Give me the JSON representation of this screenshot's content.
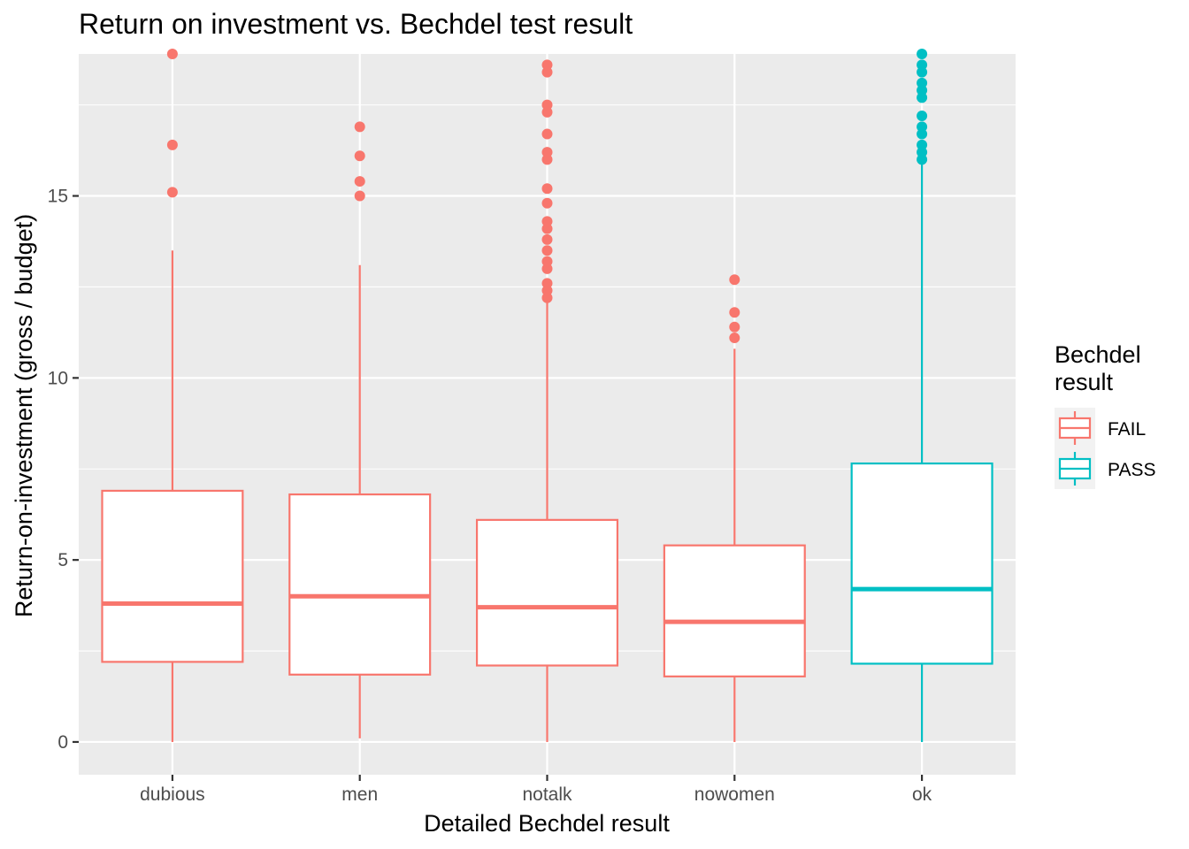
{
  "chart_data": {
    "type": "boxplot",
    "title": "Return on investment vs. Bechdel test result",
    "xlabel": "Detailed Bechdel result",
    "ylabel": "Return-on-investment (gross / budget)",
    "categories": [
      "dubious",
      "men",
      "notalk",
      "nowomen",
      "ok"
    ],
    "ylim": [
      -0.9,
      18.9
    ],
    "yticks": [
      0,
      5,
      10,
      15
    ],
    "grid": true,
    "legend": {
      "title": "Bechdel result",
      "title_lines": [
        "Bechdel",
        "result"
      ],
      "position": "right",
      "entries": [
        {
          "label": "FAIL",
          "color": "#F8766D"
        },
        {
          "label": "PASS",
          "color": "#00BFC4"
        }
      ]
    },
    "boxes": [
      {
        "category": "dubious",
        "group": "FAIL",
        "lower_whisker": 0.0,
        "q1": 2.2,
        "median": 3.8,
        "q3": 6.9,
        "upper_whisker": 13.5,
        "outliers": [
          15.1,
          16.4,
          18.9
        ]
      },
      {
        "category": "men",
        "group": "FAIL",
        "lower_whisker": 0.1,
        "q1": 1.85,
        "median": 4.0,
        "q3": 6.8,
        "upper_whisker": 13.1,
        "outliers": [
          15.0,
          15.4,
          16.1,
          16.9
        ]
      },
      {
        "category": "notalk",
        "group": "FAIL",
        "lower_whisker": 0.0,
        "q1": 2.1,
        "median": 3.7,
        "q3": 6.1,
        "upper_whisker": 12.1,
        "outliers": [
          12.2,
          12.4,
          12.6,
          13.0,
          13.2,
          13.5,
          13.8,
          14.1,
          14.3,
          14.8,
          15.2,
          16.0,
          16.2,
          16.7,
          17.3,
          17.5,
          18.4,
          18.6
        ]
      },
      {
        "category": "nowomen",
        "group": "FAIL",
        "lower_whisker": 0.0,
        "q1": 1.8,
        "median": 3.3,
        "q3": 5.4,
        "upper_whisker": 10.8,
        "outliers": [
          11.1,
          11.4,
          11.8,
          12.7
        ]
      },
      {
        "category": "ok",
        "group": "PASS",
        "lower_whisker": 0.0,
        "q1": 2.15,
        "median": 4.2,
        "q3": 7.65,
        "upper_whisker": 15.9,
        "outliers": [
          16.0,
          16.2,
          16.4,
          16.7,
          16.9,
          17.2,
          17.7,
          17.9,
          18.1,
          18.4,
          18.6,
          18.9
        ]
      }
    ]
  }
}
